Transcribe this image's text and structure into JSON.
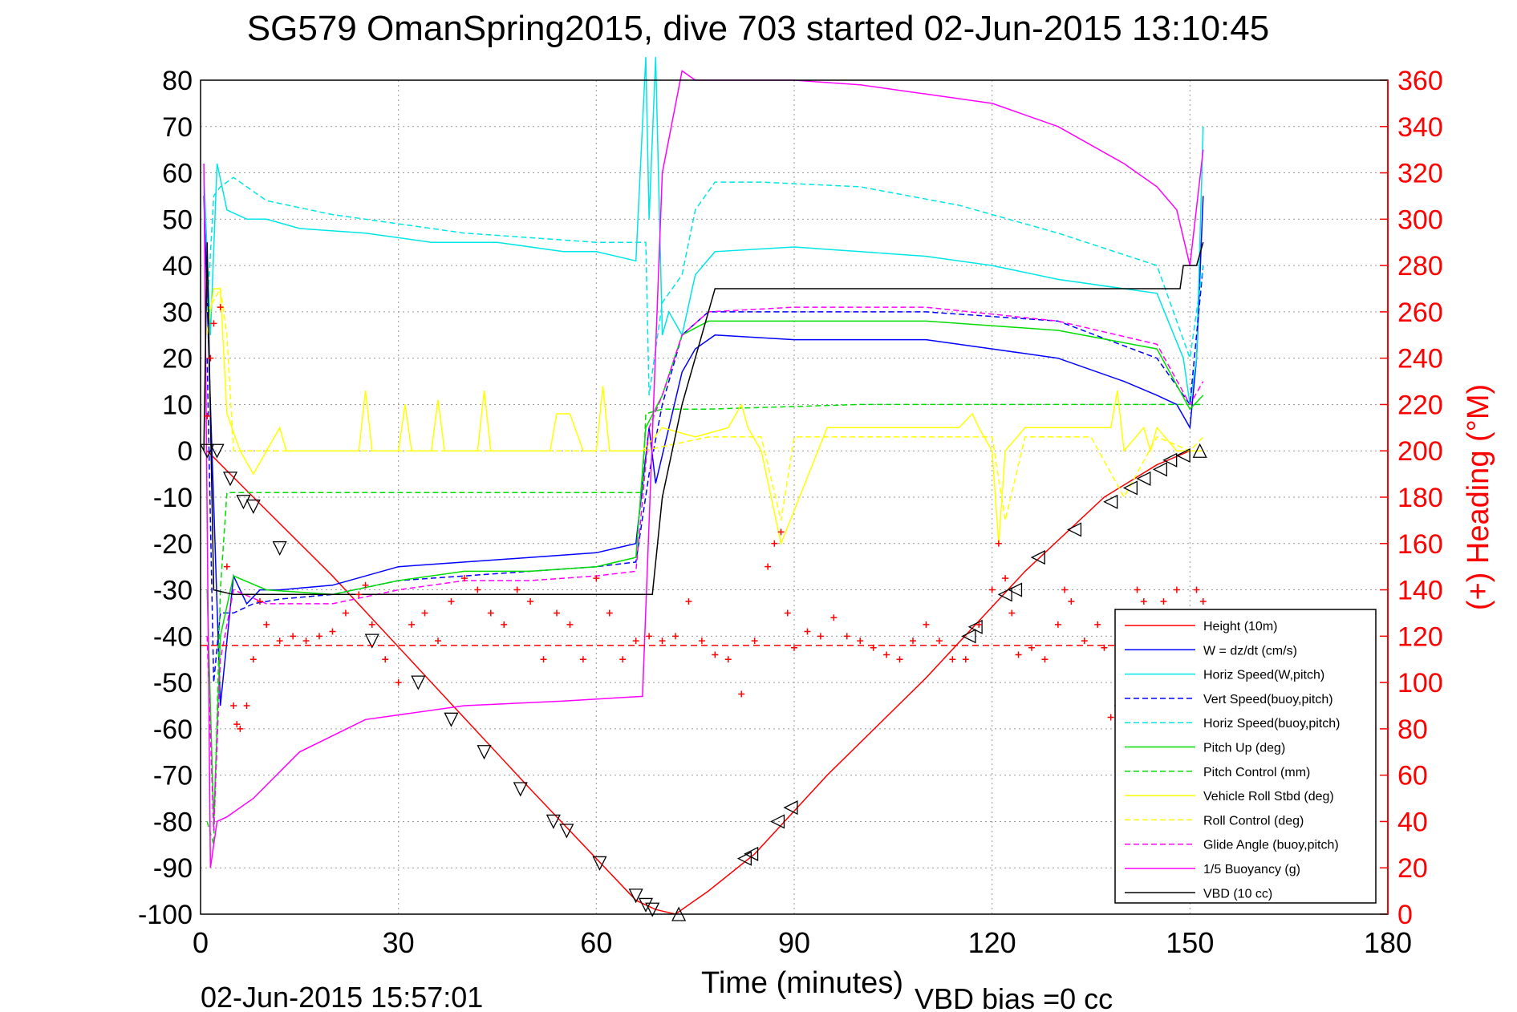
{
  "chart_data": {
    "type": "line",
    "title": "SG579 OmanSpring2015, dive 703 started 02-Jun-2015 13:10:45",
    "xlabel": "Time (minutes)",
    "ylabel_right": "(+) Heading (°M)",
    "footer_left": "02-Jun-2015 15:57:01",
    "footer_right": "VBD bias =0 cc",
    "xlim": [
      0,
      180
    ],
    "ylim_left": [
      -100,
      80
    ],
    "ylim_right": [
      0,
      360
    ],
    "x_ticks": [
      "0",
      "30",
      "60",
      "90",
      "120",
      "150",
      "180"
    ],
    "y_ticks_left": [
      "80",
      "70",
      "60",
      "50",
      "40",
      "30",
      "20",
      "10",
      "0",
      "-10",
      "-20",
      "-30",
      "-40",
      "-50",
      "-60",
      "-70",
      "-80",
      "-90",
      "-100"
    ],
    "y_ticks_right": [
      "360",
      "340",
      "320",
      "300",
      "280",
      "260",
      "240",
      "220",
      "200",
      "180",
      "160",
      "140",
      "120",
      "100",
      "80",
      "60",
      "40",
      "20",
      "0"
    ],
    "grid": true,
    "legend_position": "bottom-right",
    "colors": {
      "height": "#ff0000",
      "w": "#0000ff",
      "horiz_w": "#00e5e5",
      "vert_buoy": "#0000ff",
      "horiz_buoy": "#00e5e5",
      "pitch": "#00dd00",
      "pitch_ctl": "#00dd00",
      "roll": "#ffff00",
      "roll_ctl": "#ffff00",
      "glide": "#ff00ff",
      "buoy": "#ff00ff",
      "vbd": "#000000",
      "heading": "#ff0000"
    },
    "series": [
      {
        "key": "height",
        "name": "Height (10m)",
        "style": "solid",
        "x": [
          1,
          8,
          20,
          35,
          50,
          60,
          66,
          69,
          72,
          74,
          77,
          84,
          95,
          110,
          125,
          137,
          145,
          150,
          152
        ],
        "y": [
          0,
          -10,
          -27,
          -50,
          -73,
          -88,
          -97,
          -99,
          -100,
          -98,
          -95,
          -87,
          -70,
          -49,
          -26,
          -10,
          -3,
          0,
          0
        ]
      },
      {
        "key": "w",
        "name": "W = dz/dt (cm/s)",
        "style": "solid",
        "x": [
          0.5,
          1.5,
          3,
          5,
          7,
          9,
          12,
          20,
          30,
          40,
          50,
          60,
          66,
          68,
          69,
          71,
          73,
          75,
          78,
          90,
          100,
          110,
          120,
          130,
          140,
          145,
          148,
          150,
          151,
          152
        ],
        "y": [
          55,
          10,
          -55,
          -27,
          -33,
          -30,
          -30,
          -29,
          -25,
          -24,
          -23,
          -22,
          -20,
          5,
          -7,
          5,
          17,
          22,
          25,
          24,
          24,
          24,
          22,
          20,
          15,
          12,
          10,
          5,
          20,
          55
        ]
      },
      {
        "key": "horiz_w",
        "name": "Horiz Speed(W,pitch)",
        "style": "solid",
        "x": [
          0.5,
          1.5,
          2.5,
          4,
          7,
          10,
          15,
          25,
          35,
          45,
          55,
          60,
          66,
          67.5,
          68,
          69,
          70,
          71,
          73,
          75,
          78,
          90,
          100,
          110,
          120,
          130,
          140,
          145,
          149,
          150,
          151,
          152
        ],
        "y": [
          60,
          25,
          62,
          52,
          50,
          50,
          48,
          47,
          45,
          45,
          43,
          43,
          41,
          85,
          50,
          85,
          25,
          30,
          25,
          38,
          43,
          44,
          43,
          42,
          40,
          37,
          35,
          34,
          20,
          10,
          20,
          70
        ]
      },
      {
        "key": "vert_buoy",
        "name": "Vert Speed(buoy,pitch)",
        "style": "dashed",
        "x": [
          1,
          2,
          3,
          5,
          8,
          12,
          20,
          30,
          40,
          50,
          60,
          66,
          68,
          70,
          73,
          77,
          90,
          110,
          130,
          145,
          150,
          152
        ],
        "y": [
          20,
          -50,
          -35,
          -35,
          -33,
          -32,
          -31,
          -28,
          -27,
          -26,
          -25,
          -24,
          -5,
          10,
          25,
          30,
          30,
          30,
          28,
          20,
          10,
          40
        ]
      },
      {
        "key": "horiz_buoy",
        "name": "Horiz Speed(buoy,pitch)",
        "style": "dashed",
        "x": [
          1,
          2,
          3,
          5,
          10,
          20,
          30,
          40,
          50,
          60,
          66,
          67.5,
          68,
          70,
          73,
          75,
          78,
          85,
          100,
          115,
          130,
          145,
          150,
          152
        ],
        "y": [
          30,
          55,
          57,
          59,
          54,
          51,
          49,
          47,
          46,
          45,
          45,
          45,
          12,
          32,
          38,
          52,
          58,
          58,
          57,
          53,
          47,
          40,
          20,
          40
        ]
      },
      {
        "key": "pitch",
        "name": "Pitch Up (deg)",
        "style": "solid",
        "x": [
          1,
          2,
          3,
          5,
          10,
          20,
          30,
          40,
          50,
          60,
          66,
          67.5,
          70,
          73,
          77,
          90,
          110,
          130,
          145,
          150,
          152
        ],
        "y": [
          -30,
          -80,
          -40,
          -27,
          -30,
          -31,
          -28,
          -26,
          -26,
          -25,
          -23,
          5,
          12,
          25,
          28,
          28,
          28,
          26,
          22,
          9,
          12
        ]
      },
      {
        "key": "pitch_ctl",
        "name": "Pitch Control (mm)",
        "style": "dashed",
        "x": [
          1,
          2,
          3,
          4,
          10,
          30,
          50,
          67,
          67.5,
          70,
          77,
          100,
          130,
          150,
          152
        ],
        "y": [
          -80,
          -85,
          -30,
          -9,
          -9,
          -9,
          -9,
          -9,
          8,
          9,
          9,
          10,
          10,
          10,
          10
        ]
      },
      {
        "key": "roll",
        "name": "Vehicle Roll Stbd (deg)",
        "style": "solid",
        "x": [
          1,
          2,
          3,
          4,
          6,
          8,
          10,
          12,
          13,
          15,
          20,
          24,
          25,
          26,
          30,
          31,
          32,
          35,
          36,
          37,
          40,
          42,
          43,
          44,
          48,
          50,
          53,
          54,
          56,
          58,
          60,
          61,
          62,
          67,
          70,
          75,
          80,
          82,
          83,
          85,
          88,
          95,
          105,
          115,
          117,
          118,
          120,
          121,
          122,
          125,
          130,
          138,
          139,
          140,
          143,
          144,
          145,
          148,
          150,
          152
        ],
        "y": [
          25,
          35,
          35,
          8,
          0,
          -5,
          0,
          5,
          0,
          0,
          0,
          0,
          13,
          0,
          0,
          10,
          0,
          0,
          11,
          0,
          0,
          0,
          13,
          0,
          0,
          0,
          0,
          8,
          8,
          0,
          0,
          14,
          0,
          0,
          5,
          3,
          5,
          10,
          5,
          0,
          -20,
          5,
          5,
          5,
          8,
          5,
          0,
          -20,
          0,
          5,
          5,
          5,
          13,
          0,
          5,
          0,
          5,
          0,
          0,
          0
        ]
      },
      {
        "key": "roll_ctl",
        "name": "Roll Control (deg)",
        "style": "dashed",
        "x": [
          1,
          3,
          4,
          5,
          10,
          30,
          60,
          67,
          77,
          80,
          85,
          88,
          90,
          95,
          110,
          120,
          122,
          125,
          135,
          140,
          145,
          150,
          152
        ],
        "y": [
          30,
          35,
          25,
          0,
          0,
          0,
          0,
          0,
          3,
          3,
          3,
          -15,
          3,
          3,
          3,
          3,
          -15,
          3,
          3,
          -10,
          3,
          0,
          3
        ]
      },
      {
        "key": "glide",
        "name": "Glide Angle (buoy,pitch)",
        "style": "dashed",
        "x": [
          1,
          2,
          3,
          5,
          10,
          20,
          30,
          40,
          50,
          60,
          66,
          68,
          70,
          73,
          77,
          90,
          110,
          130,
          145,
          150,
          152
        ],
        "y": [
          -40,
          -82,
          -45,
          -30,
          -33,
          -33,
          -30,
          -28,
          -28,
          -27,
          -26,
          5,
          12,
          25,
          30,
          31,
          31,
          28,
          23,
          10,
          15
        ]
      },
      {
        "key": "buoy",
        "name": "1/5 Buoyancy (g)",
        "style": "solid",
        "x": [
          0.5,
          1.5,
          2.5,
          4,
          8,
          15,
          25,
          40,
          55,
          67,
          70,
          73,
          75,
          78,
          90,
          100,
          110,
          120,
          130,
          140,
          145,
          148,
          150,
          152
        ],
        "y": [
          62,
          -90,
          -80,
          -79,
          -75,
          -65,
          -58,
          -55,
          -54,
          -53,
          60,
          82,
          80,
          80,
          80,
          79,
          77,
          75,
          70,
          62,
          57,
          52,
          40,
          65
        ]
      },
      {
        "key": "vbd",
        "name": "VBD (10 cc)",
        "style": "solid",
        "x": [
          0.5,
          1,
          2,
          5,
          8,
          30,
          60,
          68.5,
          70,
          73,
          78,
          100,
          130,
          148.5,
          149,
          150,
          151,
          152
        ],
        "y": [
          0,
          45,
          -30,
          -31,
          -31,
          -31,
          -31,
          -31,
          -10,
          10,
          35,
          35,
          35,
          35,
          40,
          40,
          40,
          45
        ]
      }
    ],
    "heading": {
      "name": "Heading",
      "style": "plus-markers",
      "axis": "right",
      "mean": 116,
      "x": [
        1,
        1.5,
        2,
        3,
        4,
        5,
        5.5,
        6,
        7,
        8,
        9,
        10,
        12,
        14,
        16,
        18,
        20,
        22,
        24,
        25,
        26,
        28,
        30,
        32,
        34,
        36,
        38,
        40,
        42,
        44,
        46,
        48,
        50,
        52,
        54,
        56,
        58,
        60,
        62,
        64,
        66,
        68,
        70,
        72,
        74,
        76,
        78,
        80,
        82,
        84,
        86,
        87,
        88,
        89,
        90,
        92,
        94,
        96,
        98,
        100,
        102,
        104,
        106,
        108,
        110,
        112,
        114,
        116,
        118,
        120,
        121,
        122,
        123,
        124,
        126,
        128,
        130,
        131,
        132,
        134,
        136,
        137,
        138,
        139,
        141,
        142,
        143,
        144,
        146,
        148,
        150,
        151,
        152
      ],
      "y": [
        215,
        240,
        255,
        262,
        150,
        90,
        82,
        80,
        90,
        110,
        135,
        125,
        118,
        120,
        118,
        120,
        122,
        130,
        138,
        142,
        125,
        110,
        100,
        125,
        130,
        118,
        135,
        145,
        140,
        130,
        125,
        140,
        135,
        110,
        130,
        125,
        110,
        145,
        130,
        110,
        118,
        120,
        118,
        120,
        135,
        118,
        112,
        110,
        95,
        118,
        150,
        160,
        165,
        130,
        115,
        122,
        120,
        128,
        120,
        118,
        115,
        112,
        110,
        118,
        125,
        118,
        110,
        110,
        125,
        140,
        160,
        145,
        130,
        112,
        115,
        110,
        125,
        140,
        135,
        118,
        125,
        115,
        85,
        90,
        120,
        140,
        135,
        125,
        135,
        140,
        125,
        140,
        135
      ]
    },
    "depth_markers": {
      "x": [
        1,
        2.5,
        4.5,
        6.5,
        8,
        12,
        26,
        33,
        38,
        43,
        48.5,
        53.5,
        55.5,
        60.5,
        66,
        67.5,
        68.5,
        72.5,
        82.5,
        83.5,
        87.5,
        89.5,
        116.5,
        117.5,
        122,
        123.5,
        127,
        132.5,
        138,
        141,
        143,
        145.5,
        147,
        149,
        151.5
      ],
      "y": [
        0,
        0,
        -6,
        -11,
        -12,
        -21,
        -41,
        -50,
        -58,
        -65,
        -73,
        -80,
        -82,
        -89,
        -96,
        -98,
        -99,
        -100,
        -88,
        -87,
        -80,
        -77,
        -40,
        -38,
        -31,
        -30,
        -23,
        -17,
        -11,
        -8,
        -6,
        -4,
        -2,
        -1,
        0
      ]
    }
  }
}
